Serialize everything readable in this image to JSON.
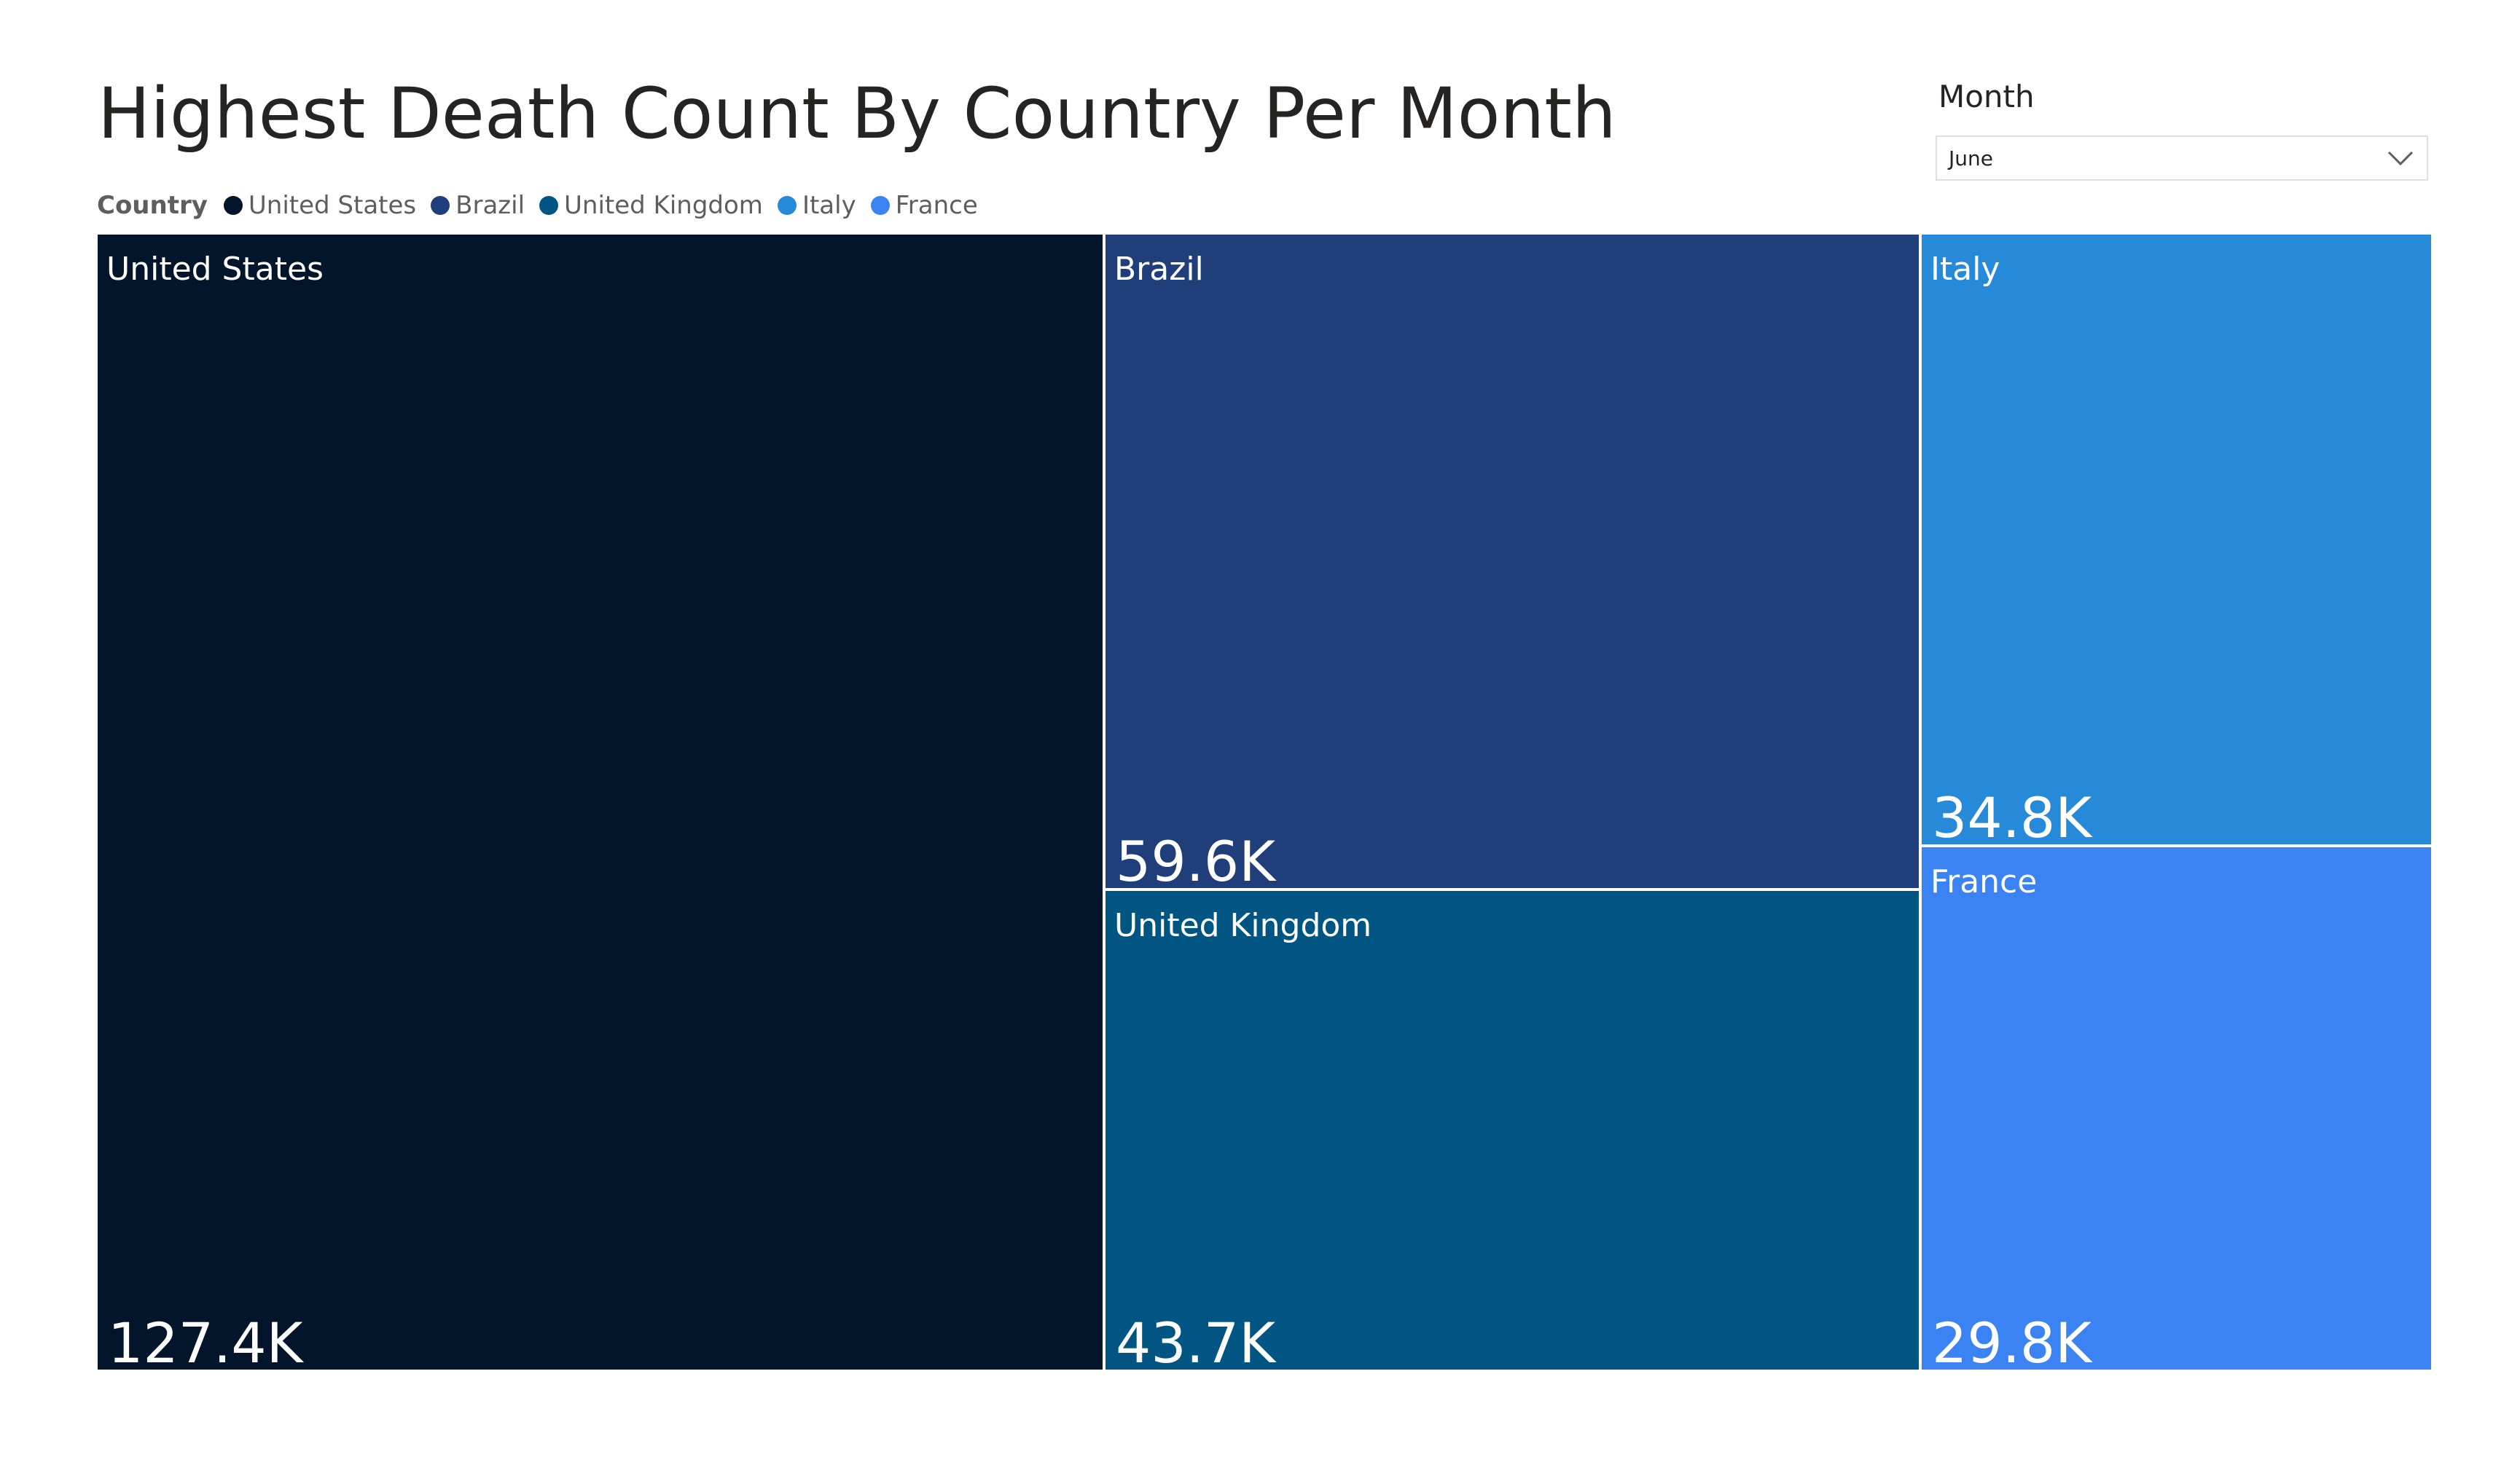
{
  "title": "Highest Death Count By Country Per Month",
  "legend": {
    "title": "Country",
    "items": [
      {
        "label": "United States",
        "color": "#02152a"
      },
      {
        "label": "Brazil",
        "color": "#203f7a"
      },
      {
        "label": "United Kingdom",
        "color": "#005582"
      },
      {
        "label": "Italy",
        "color": "#268ad9"
      },
      {
        "label": "France",
        "color": "#3b82f3"
      }
    ]
  },
  "slicer": {
    "label": "Month",
    "selected": "June",
    "icon": "chevron-down-icon"
  },
  "chart_data": {
    "type": "treemap",
    "title": "Highest Death Count By Country Per Month",
    "category_field": "Country",
    "series": [
      {
        "name": "United States",
        "value": 127400,
        "label": "127.4K",
        "color": "#02152a"
      },
      {
        "name": "Brazil",
        "value": 59600,
        "label": "59.6K",
        "color": "#203f7a"
      },
      {
        "name": "United Kingdom",
        "value": 43700,
        "label": "43.7K",
        "color": "#005582"
      },
      {
        "name": "Italy",
        "value": 34800,
        "label": "34.8K",
        "color": "#268ad9"
      },
      {
        "name": "France",
        "value": 29800,
        "label": "29.8K",
        "color": "#3b82f3"
      }
    ]
  }
}
